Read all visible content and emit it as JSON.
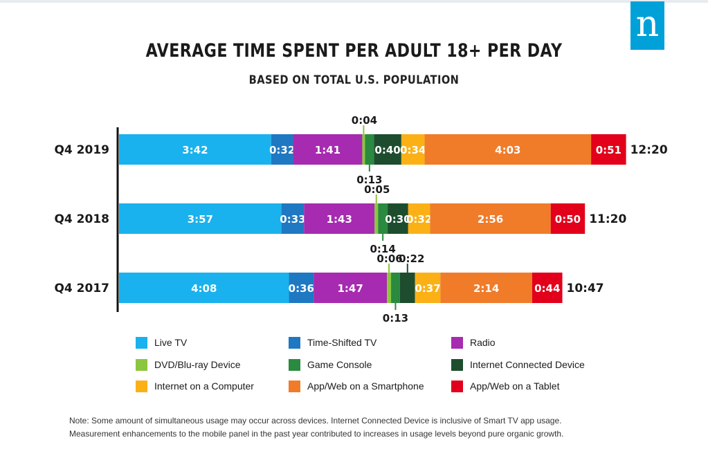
{
  "brand": {
    "logo_letter": "n",
    "logo_color": "#00a1d9"
  },
  "chart_data": {
    "type": "bar",
    "orientation": "horizontal",
    "stacked": true,
    "title": "AVERAGE TIME SPENT PER ADULT 18+ PER DAY",
    "subtitle": "BASED ON TOTAL U.S. POPULATION",
    "categories": [
      "Q4 2019",
      "Q4 2018",
      "Q4 2017"
    ],
    "totals": [
      "12:20",
      "11:20",
      "10:47"
    ],
    "value_unit": "minutes",
    "series": [
      {
        "name": "Live TV",
        "color": "#19b2ee",
        "values": [
          222,
          237,
          248
        ],
        "labels": [
          "3:42",
          "3:57",
          "4:08"
        ]
      },
      {
        "name": "Time-Shifted TV",
        "color": "#1f78c2",
        "values": [
          32,
          33,
          36
        ],
        "labels": [
          "0:32",
          "0:33",
          "0:36"
        ]
      },
      {
        "name": "Radio",
        "color": "#a62bb0",
        "values": [
          101,
          103,
          107
        ],
        "labels": [
          "1:41",
          "1:43",
          "1:47"
        ]
      },
      {
        "name": "DVD/Blu-ray Device",
        "color": "#8cc63f",
        "values": [
          4,
          5,
          6
        ],
        "labels": [
          "0:04",
          "0:05",
          "0:06"
        ]
      },
      {
        "name": "Game Console",
        "color": "#2a8a3f",
        "values": [
          13,
          14,
          13
        ],
        "labels": [
          "0:13",
          "0:14",
          "0:13"
        ]
      },
      {
        "name": "Internet Connected Device",
        "color": "#1d4d2e",
        "values": [
          40,
          30,
          22
        ],
        "labels": [
          "0:40",
          "0:30",
          "0:22"
        ]
      },
      {
        "name": "Internet on a Computer",
        "color": "#fbb116",
        "values": [
          34,
          32,
          37
        ],
        "labels": [
          "0:34",
          "0:32",
          "0:37"
        ]
      },
      {
        "name": "App/Web on a Smartphone",
        "color": "#f07c2a",
        "values": [
          243,
          176,
          134
        ],
        "labels": [
          "4:03",
          "2:56",
          "2:14"
        ]
      },
      {
        "name": "App/Web on a Tablet",
        "color": "#e2001a",
        "values": [
          51,
          50,
          44
        ],
        "labels": [
          "0:51",
          "0:50",
          "0:44"
        ]
      }
    ],
    "legend_position": "bottom",
    "grid": false
  },
  "legend": {
    "items": [
      {
        "label": "Live TV",
        "color": "#19b2ee"
      },
      {
        "label": "Time-Shifted TV",
        "color": "#1f78c2"
      },
      {
        "label": "Radio",
        "color": "#a62bb0"
      },
      {
        "label": "DVD/Blu-ray Device",
        "color": "#8cc63f"
      },
      {
        "label": "Game Console",
        "color": "#2a8a3f"
      },
      {
        "label": "Internet Connected Device",
        "color": "#1d4d2e"
      },
      {
        "label": "Internet on a Computer",
        "color": "#fbb116"
      },
      {
        "label": "App/Web on a Smartphone",
        "color": "#f07c2a"
      },
      {
        "label": "App/Web on a Tablet",
        "color": "#e2001a"
      }
    ]
  },
  "note": {
    "line1": "Note: Some amount of simultaneous usage may occur across devices. Internet Connected Device is inclusive of Smart TV app usage.",
    "line2": "Measurement enhancements to the mobile panel in the past year contributed to increases in usage levels beyond pure organic growth."
  }
}
